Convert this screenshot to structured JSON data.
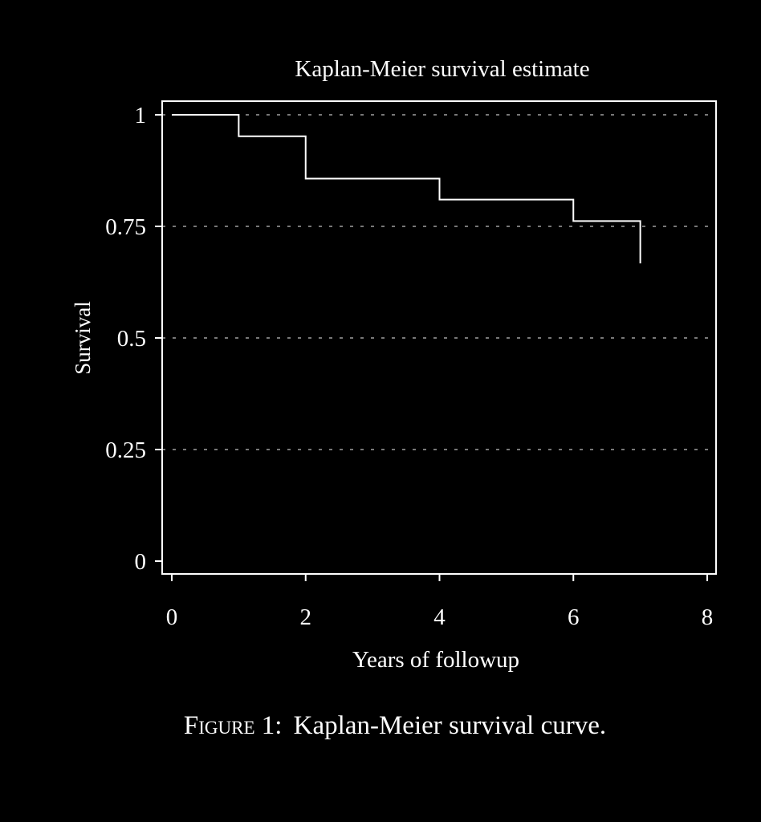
{
  "colors": {
    "background": "#000000",
    "foreground": "#ffffff",
    "grid": "#bfbfbf"
  },
  "caption": {
    "label": "Figure 1:",
    "text": "Kaplan-Meier survival curve."
  },
  "chart_data": {
    "type": "line",
    "title": "Kaplan-Meier survival estimate",
    "xlabel": "Years of followup",
    "ylabel": "Survival",
    "xlim": [
      0,
      8
    ],
    "ylim": [
      0,
      1
    ],
    "x_ticks": [
      0,
      2,
      4,
      6,
      8
    ],
    "x_tick_labels": [
      "0",
      "2",
      "4",
      "6",
      "8"
    ],
    "y_ticks": [
      0,
      0.25,
      0.5,
      0.75,
      1
    ],
    "y_tick_labels": [
      "0",
      "0.25",
      "0.5",
      "0.75",
      "1"
    ],
    "grid": "horizontal dashed",
    "legend": "none",
    "series": [
      {
        "step": true,
        "x": [
          0,
          1,
          2,
          4,
          6,
          7
        ],
        "y": [
          1.0,
          0.952,
          0.857,
          0.81,
          0.762,
          0.667
        ]
      }
    ]
  }
}
